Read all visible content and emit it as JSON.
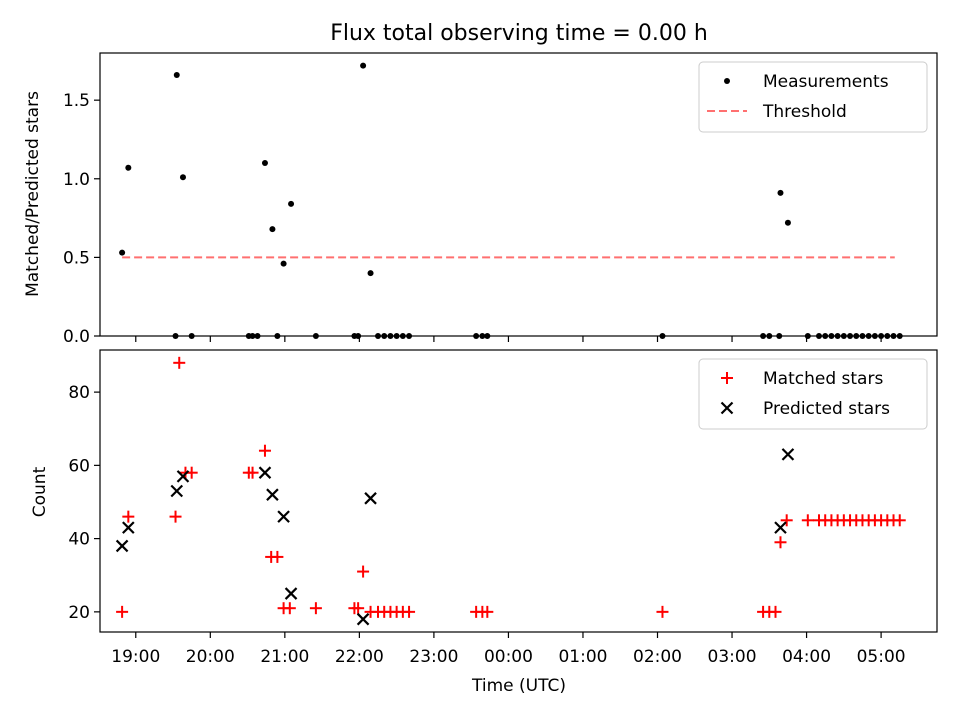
{
  "title": "Flux total observing time = 0.00 h",
  "chart_data": [
    {
      "type": "scatter",
      "ylabel": "Matched/Predicted stars",
      "ylim": [
        0,
        1.8
      ],
      "xlim_hours": [
        18.52,
        29.75
      ],
      "yticks": [
        {
          "value": 0.0,
          "label": "0.0"
        },
        {
          "value": 0.5,
          "label": "0.5"
        },
        {
          "value": 1.0,
          "label": "1.0"
        },
        {
          "value": 1.5,
          "label": "1.5"
        }
      ],
      "legend_position": "top-right",
      "legend": [
        {
          "label": "Measurements",
          "marker": "dot",
          "color": "#000000"
        },
        {
          "label": "Threshold",
          "marker": "dashed-line",
          "color": "#ff7070"
        }
      ],
      "threshold": {
        "value": 0.5,
        "x_range": [
          "18:49",
          "05:11"
        ]
      },
      "series": [
        {
          "name": "Measurements",
          "color": "#000000",
          "points": [
            {
              "x": "18:49",
              "y": 0.53
            },
            {
              "x": "18:54",
              "y": 1.07
            },
            {
              "x": "19:32",
              "y": 0.0
            },
            {
              "x": "19:33",
              "y": 1.66
            },
            {
              "x": "19:38",
              "y": 1.01
            },
            {
              "x": "19:45",
              "y": 0.0
            },
            {
              "x": "20:31",
              "y": 0.0
            },
            {
              "x": "20:34",
              "y": 0.0
            },
            {
              "x": "20:38",
              "y": 0.0
            },
            {
              "x": "20:44",
              "y": 1.1
            },
            {
              "x": "20:50",
              "y": 0.68
            },
            {
              "x": "20:54",
              "y": 0.0
            },
            {
              "x": "20:59",
              "y": 0.46
            },
            {
              "x": "21:05",
              "y": 0.84
            },
            {
              "x": "21:25",
              "y": 0.0
            },
            {
              "x": "21:56",
              "y": 0.0
            },
            {
              "x": "21:59",
              "y": 0.0
            },
            {
              "x": "22:03",
              "y": 1.72
            },
            {
              "x": "22:09",
              "y": 0.4
            },
            {
              "x": "22:15",
              "y": 0.0
            },
            {
              "x": "22:20",
              "y": 0.0
            },
            {
              "x": "22:25",
              "y": 0.0
            },
            {
              "x": "22:30",
              "y": 0.0
            },
            {
              "x": "22:35",
              "y": 0.0
            },
            {
              "x": "22:40",
              "y": 0.0
            },
            {
              "x": "23:34",
              "y": 0.0
            },
            {
              "x": "23:39",
              "y": 0.0
            },
            {
              "x": "23:43",
              "y": 0.0
            },
            {
              "x": "02:04",
              "y": 0.0
            },
            {
              "x": "03:25",
              "y": 0.0
            },
            {
              "x": "03:30",
              "y": 0.0
            },
            {
              "x": "03:38",
              "y": 0.0
            },
            {
              "x": "03:39",
              "y": 0.91
            },
            {
              "x": "03:45",
              "y": 0.72
            },
            {
              "x": "04:01",
              "y": 0.0
            },
            {
              "x": "04:10",
              "y": 0.0
            },
            {
              "x": "04:15",
              "y": 0.0
            },
            {
              "x": "04:20",
              "y": 0.0
            },
            {
              "x": "04:25",
              "y": 0.0
            },
            {
              "x": "04:30",
              "y": 0.0
            },
            {
              "x": "04:35",
              "y": 0.0
            },
            {
              "x": "04:40",
              "y": 0.0
            },
            {
              "x": "04:45",
              "y": 0.0
            },
            {
              "x": "04:50",
              "y": 0.0
            },
            {
              "x": "04:55",
              "y": 0.0
            },
            {
              "x": "05:00",
              "y": 0.0
            },
            {
              "x": "05:05",
              "y": 0.0
            },
            {
              "x": "05:10",
              "y": 0.0
            },
            {
              "x": "05:15",
              "y": 0.0
            }
          ]
        }
      ]
    },
    {
      "type": "scatter",
      "xlabel": "Time (UTC)",
      "ylabel": "Count",
      "ylim": [
        14.5,
        91.5
      ],
      "xlim_hours": [
        18.52,
        29.75
      ],
      "yticks": [
        {
          "value": 20,
          "label": "20"
        },
        {
          "value": 40,
          "label": "40"
        },
        {
          "value": 60,
          "label": "60"
        },
        {
          "value": 80,
          "label": "80"
        }
      ],
      "xticks": [
        {
          "value": 19,
          "label": "19:00"
        },
        {
          "value": 20,
          "label": "20:00"
        },
        {
          "value": 21,
          "label": "21:00"
        },
        {
          "value": 22,
          "label": "22:00"
        },
        {
          "value": 23,
          "label": "23:00"
        },
        {
          "value": 24,
          "label": "00:00"
        },
        {
          "value": 25,
          "label": "01:00"
        },
        {
          "value": 26,
          "label": "02:00"
        },
        {
          "value": 27,
          "label": "03:00"
        },
        {
          "value": 28,
          "label": "04:00"
        },
        {
          "value": 29,
          "label": "05:00"
        }
      ],
      "legend_position": "top-right",
      "legend": [
        {
          "label": "Matched stars",
          "marker": "plus",
          "color": "#ff0000"
        },
        {
          "label": "Predicted stars",
          "marker": "x",
          "color": "#000000"
        }
      ],
      "series": [
        {
          "name": "Matched stars",
          "marker": "plus",
          "color": "#ff0000",
          "points": [
            {
              "x": "18:49",
              "y": 20
            },
            {
              "x": "18:54",
              "y": 46
            },
            {
              "x": "19:32",
              "y": 46
            },
            {
              "x": "19:35",
              "y": 88
            },
            {
              "x": "19:40",
              "y": 58
            },
            {
              "x": "19:45",
              "y": 58
            },
            {
              "x": "20:31",
              "y": 58
            },
            {
              "x": "20:34",
              "y": 58
            },
            {
              "x": "20:44",
              "y": 64
            },
            {
              "x": "20:49",
              "y": 35
            },
            {
              "x": "20:54",
              "y": 35
            },
            {
              "x": "20:59",
              "y": 21
            },
            {
              "x": "21:04",
              "y": 21
            },
            {
              "x": "21:25",
              "y": 21
            },
            {
              "x": "21:56",
              "y": 21
            },
            {
              "x": "21:59",
              "y": 21
            },
            {
              "x": "22:03",
              "y": 31
            },
            {
              "x": "22:09",
              "y": 20
            },
            {
              "x": "22:15",
              "y": 20
            },
            {
              "x": "22:20",
              "y": 20
            },
            {
              "x": "22:25",
              "y": 20
            },
            {
              "x": "22:30",
              "y": 20
            },
            {
              "x": "22:35",
              "y": 20
            },
            {
              "x": "22:40",
              "y": 20
            },
            {
              "x": "23:34",
              "y": 20
            },
            {
              "x": "23:39",
              "y": 20
            },
            {
              "x": "23:43",
              "y": 20
            },
            {
              "x": "02:04",
              "y": 20
            },
            {
              "x": "03:25",
              "y": 20
            },
            {
              "x": "03:30",
              "y": 20
            },
            {
              "x": "03:35",
              "y": 20
            },
            {
              "x": "03:39",
              "y": 39
            },
            {
              "x": "03:44",
              "y": 45
            },
            {
              "x": "04:01",
              "y": 45
            },
            {
              "x": "04:10",
              "y": 45
            },
            {
              "x": "04:15",
              "y": 45
            },
            {
              "x": "04:20",
              "y": 45
            },
            {
              "x": "04:25",
              "y": 45
            },
            {
              "x": "04:30",
              "y": 45
            },
            {
              "x": "04:35",
              "y": 45
            },
            {
              "x": "04:40",
              "y": 45
            },
            {
              "x": "04:45",
              "y": 45
            },
            {
              "x": "04:50",
              "y": 45
            },
            {
              "x": "04:55",
              "y": 45
            },
            {
              "x": "05:00",
              "y": 45
            },
            {
              "x": "05:05",
              "y": 45
            },
            {
              "x": "05:10",
              "y": 45
            },
            {
              "x": "05:15",
              "y": 45
            }
          ]
        },
        {
          "name": "Predicted stars",
          "marker": "x",
          "color": "#000000",
          "points": [
            {
              "x": "18:49",
              "y": 38
            },
            {
              "x": "18:54",
              "y": 43
            },
            {
              "x": "19:33",
              "y": 53
            },
            {
              "x": "19:38",
              "y": 57
            },
            {
              "x": "20:44",
              "y": 58
            },
            {
              "x": "20:50",
              "y": 52
            },
            {
              "x": "20:59",
              "y": 46
            },
            {
              "x": "21:05",
              "y": 25
            },
            {
              "x": "22:03",
              "y": 18
            },
            {
              "x": "22:09",
              "y": 51
            },
            {
              "x": "03:39",
              "y": 43
            },
            {
              "x": "03:45",
              "y": 63
            }
          ]
        }
      ]
    }
  ]
}
